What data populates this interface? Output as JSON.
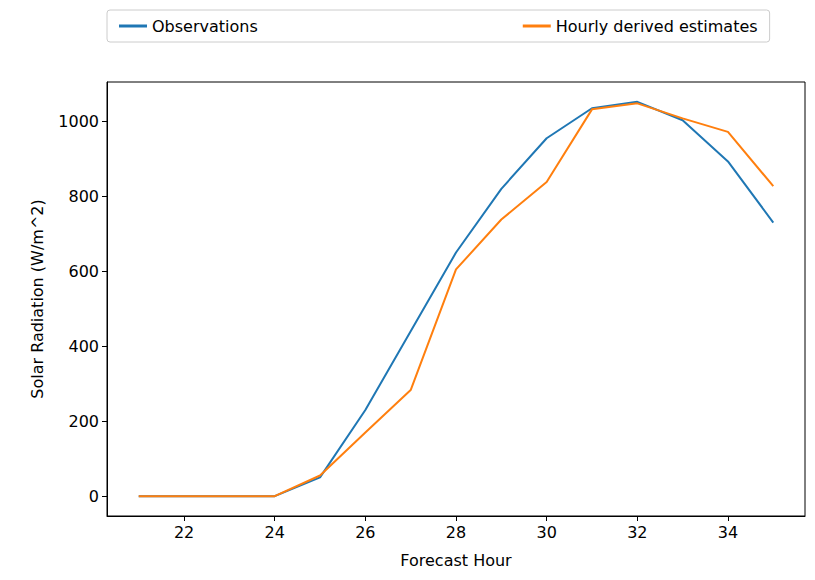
{
  "chart_data": {
    "type": "line",
    "x_label": "Forecast Hour",
    "y_label": "Solar Radiation (W/m^2)",
    "x": [
      21,
      22,
      23,
      24,
      25,
      26,
      27,
      28,
      29,
      30,
      31,
      32,
      33,
      34,
      35
    ],
    "series": [
      {
        "name": "Observations",
        "color": "#1f77b4",
        "values": [
          0,
          0,
          0,
          0,
          50,
          230,
          440,
          650,
          820,
          955,
          1035,
          1052,
          1003,
          893,
          730
        ]
      },
      {
        "name": "Hourly derived estimates",
        "color": "#ff7f0e",
        "values": [
          0,
          0,
          0,
          0,
          55,
          170,
          283,
          605,
          738,
          838,
          1032,
          1048,
          1008,
          972,
          827
        ]
      }
    ],
    "xlim": [
      20.3,
      35.7
    ],
    "xticks": [
      22,
      24,
      26,
      28,
      30,
      32,
      34
    ],
    "ylim": [
      -53,
      1105
    ],
    "yticks": [
      0,
      200,
      400,
      600,
      800,
      1000
    ],
    "grid": false,
    "legend": "top"
  }
}
